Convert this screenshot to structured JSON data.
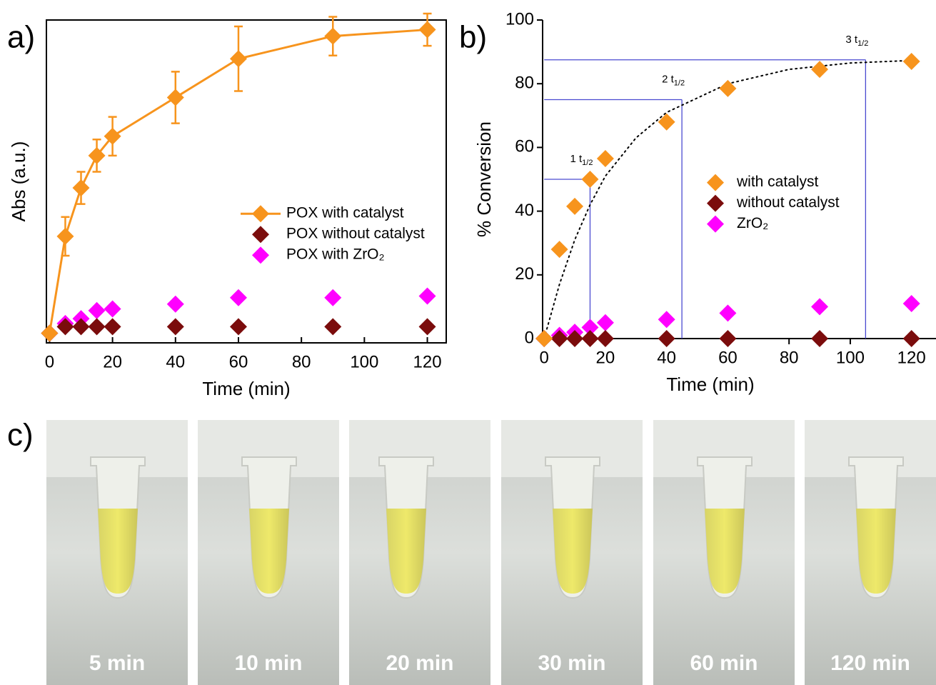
{
  "panel_labels": [
    "a)",
    "b)",
    "c)"
  ],
  "chart_data": [
    {
      "type": "line",
      "x_label": "Time (min)",
      "y_label": "Abs (a.u.)",
      "x": [
        0,
        5,
        10,
        15,
        20,
        40,
        60,
        90,
        120
      ],
      "xlim": [
        -1,
        126
      ],
      "xticks": [
        0,
        20,
        40,
        60,
        80,
        100,
        120
      ],
      "ylim": [
        0,
        1
      ],
      "legend": "center right",
      "series": [
        {
          "name": "POX with catalyst",
          "color": "#f7941d",
          "mode": "lines+markers",
          "values": [
            0.03,
            0.33,
            0.48,
            0.58,
            0.64,
            0.76,
            0.88,
            0.95,
            0.97
          ],
          "errors": [
            0,
            0.06,
            0.05,
            0.05,
            0.06,
            0.08,
            0.1,
            0.06,
            0.05
          ]
        },
        {
          "name": "POX without catalyst",
          "color": "#7b0c0c",
          "mode": "markers",
          "values": [
            0.03,
            0.05,
            0.05,
            0.05,
            0.05,
            0.05,
            0.05,
            0.05,
            0.05
          ]
        },
        {
          "name": "POX with ZrO₂",
          "color": "#ff00ff",
          "mode": "markers",
          "values": [
            0.03,
            0.06,
            0.075,
            0.1,
            0.105,
            0.12,
            0.14,
            0.14,
            0.145
          ]
        }
      ]
    },
    {
      "type": "scatter",
      "x_label": "Time (min)",
      "y_label": "% Conversion",
      "x": [
        0,
        5,
        10,
        15,
        20,
        40,
        60,
        90,
        120
      ],
      "xlim": [
        -0.5,
        128
      ],
      "xticks": [
        0,
        20,
        40,
        60,
        80,
        100,
        120
      ],
      "ylim": [
        0,
        100
      ],
      "yticks": [
        0,
        20,
        40,
        60,
        80,
        100
      ],
      "legend": "center right",
      "series": [
        {
          "name": "with catalyst",
          "color": "#f7941d",
          "values": [
            0,
            28,
            41.5,
            50,
            56.5,
            68,
            78.5,
            84.5,
            87
          ]
        },
        {
          "name": "without catalyst",
          "color": "#7b0c0c",
          "values": [
            0,
            0,
            0,
            0,
            0,
            0,
            0,
            0,
            0
          ]
        },
        {
          "name": "ZrO₂",
          "color": "#ff00ff",
          "values": [
            0,
            1,
            2,
            3.5,
            5,
            6,
            8,
            10,
            11
          ]
        }
      ],
      "fit": {
        "x": [
          0,
          5,
          10,
          15,
          20,
          30,
          40,
          60,
          80,
          100,
          120
        ],
        "values": [
          0,
          17,
          31,
          42,
          51,
          63,
          71,
          80,
          84.5,
          86.5,
          87.3
        ]
      },
      "half_lives": [
        {
          "x": 15,
          "y": 50,
          "label": "1 t",
          "sub": "1/2"
        },
        {
          "x": 45,
          "y": 75,
          "label": "2 t",
          "sub": "1/2"
        },
        {
          "x": 105,
          "y": 87.5,
          "label": "3 t",
          "sub": "1/2"
        }
      ]
    }
  ],
  "photos": {
    "captions": [
      "5 min",
      "10 min",
      "20 min",
      "30 min",
      "60 min",
      "120 min"
    ]
  }
}
